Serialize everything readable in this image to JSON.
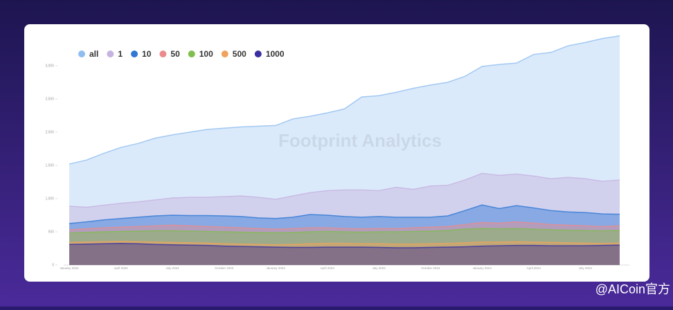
{
  "chart_data": {
    "type": "area",
    "watermark": "Footprint Analytics",
    "credit": "@AICoin官方",
    "categories": [
      "January 2022",
      null,
      null,
      "April 2022",
      null,
      null,
      "July 2022",
      null,
      null,
      "October 2022",
      null,
      null,
      "January 2023",
      null,
      null,
      "April 2023",
      null,
      null,
      "July 2023",
      null,
      null,
      "October 2023",
      null,
      null,
      "January 2024",
      null,
      null,
      "April 2024",
      null,
      null,
      "July 2024",
      null,
      null
    ],
    "series": [
      {
        "name": "all",
        "color": "#8fbdf0",
        "values": [
          1520,
          1580,
          1680,
          1770,
          1830,
          1910,
          1960,
          2000,
          2040,
          2060,
          2080,
          2090,
          2100,
          2200,
          2240,
          2290,
          2350,
          2530,
          2550,
          2600,
          2660,
          2710,
          2750,
          2840,
          2990,
          3020,
          3040,
          3170,
          3200,
          3300,
          3350,
          3410,
          3450
        ]
      },
      {
        "name": "1",
        "color": "#c5b3e0",
        "values": [
          885,
          870,
          900,
          930,
          950,
          980,
          1010,
          1020,
          1020,
          1030,
          1040,
          1020,
          990,
          1040,
          1090,
          1120,
          1130,
          1130,
          1120,
          1170,
          1140,
          1190,
          1200,
          1280,
          1380,
          1350,
          1370,
          1340,
          1300,
          1320,
          1300,
          1260,
          1280
        ]
      },
      {
        "name": "10",
        "color": "#2f78d4",
        "values": [
          625,
          650,
          680,
          700,
          720,
          740,
          750,
          745,
          745,
          740,
          730,
          710,
          700,
          720,
          760,
          750,
          730,
          720,
          730,
          720,
          720,
          720,
          740,
          820,
          905,
          850,
          895,
          860,
          820,
          800,
          790,
          770,
          765
        ]
      },
      {
        "name": "50",
        "color": "#ea8c8c",
        "values": [
          530,
          545,
          560,
          570,
          580,
          590,
          600,
          590,
          580,
          570,
          560,
          550,
          540,
          550,
          560,
          560,
          550,
          545,
          550,
          550,
          560,
          570,
          580,
          610,
          640,
          630,
          650,
          630,
          610,
          600,
          590,
          580,
          590
        ]
      },
      {
        "name": "100",
        "color": "#7fbe4f",
        "values": [
          480,
          490,
          500,
          505,
          510,
          515,
          515,
          510,
          505,
          500,
          495,
          490,
          485,
          490,
          500,
          505,
          500,
          495,
          500,
          500,
          505,
          510,
          520,
          540,
          550,
          545,
          550,
          540,
          530,
          525,
          520,
          515,
          520
        ]
      },
      {
        "name": "500",
        "color": "#f0a35e",
        "values": [
          340,
          345,
          350,
          355,
          350,
          345,
          340,
          335,
          330,
          320,
          315,
          310,
          305,
          310,
          320,
          325,
          325,
          320,
          320,
          315,
          315,
          320,
          325,
          335,
          345,
          345,
          350,
          345,
          340,
          335,
          330,
          325,
          330
        ]
      },
      {
        "name": "1000",
        "color": "#3a2fa0",
        "values": [
          310,
          315,
          320,
          325,
          320,
          310,
          305,
          300,
          295,
          285,
          280,
          275,
          270,
          265,
          265,
          270,
          270,
          270,
          265,
          260,
          260,
          265,
          270,
          275,
          285,
          290,
          295,
          295,
          290,
          290,
          290,
          295,
          300
        ]
      }
    ],
    "ylim": [
      0,
      3500
    ],
    "yticks": [
      0,
      500,
      {
        "value": 1000,
        "label": "1,000"
      },
      {
        "value": 1500,
        "label": "1,500"
      },
      {
        "value": 2000,
        "label": "2,000"
      },
      {
        "value": 2500,
        "label": "2,500"
      },
      {
        "value": 3000,
        "label": "3,000"
      }
    ],
    "grid": false
  }
}
